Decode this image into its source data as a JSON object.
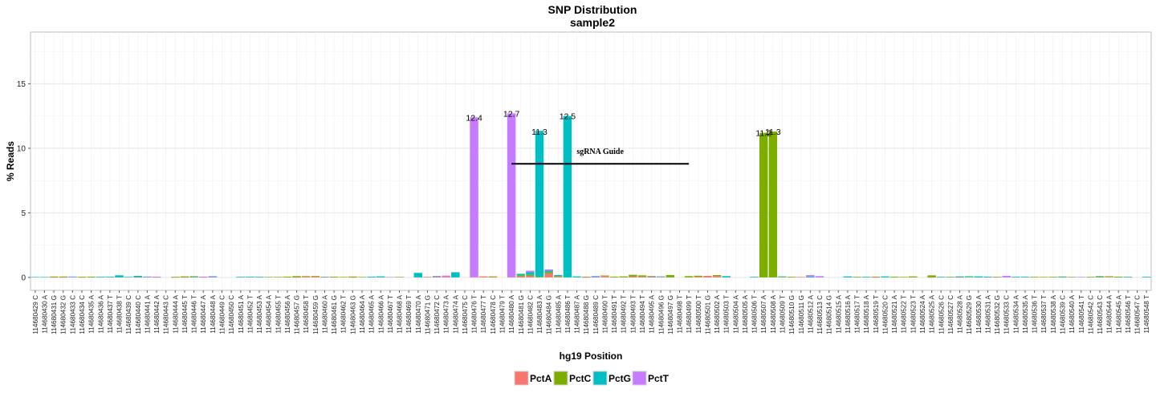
{
  "chart_data": {
    "type": "bar",
    "stacked": true,
    "title": "SNP Distribution",
    "subtitle": "sample2",
    "xlabel": "hg19 Position",
    "ylabel": "% Reads",
    "ylim": [
      -1,
      19
    ],
    "yticks": [
      0,
      5,
      10,
      15
    ],
    "grid": true,
    "legend_position": "bottom",
    "categories": [
      "114680429 C",
      "114680430 A",
      "114680431 G",
      "114680432 G",
      "114680433 C",
      "114680434 C",
      "114680435 A",
      "114680436 A",
      "114680437 T",
      "114680438 T",
      "114680439 C",
      "114680440 C",
      "114680441 A",
      "114680442 A",
      "114680443 C",
      "114680444 A",
      "114680445 T",
      "114680446 T",
      "114680447 A",
      "114680448 A",
      "114680449 C",
      "114680450 C",
      "114680451 A",
      "114680452 T",
      "114680453 A",
      "114680454 A",
      "114680455 T",
      "114680456 A",
      "114680457 G",
      "114680458 T",
      "114680459 G",
      "114680460 A",
      "114680461 G",
      "114680462 T",
      "114680463 G",
      "114680464 A",
      "114680465 A",
      "114680466 A",
      "114680467 T",
      "114680468 A",
      "114680469 T",
      "114680470 A",
      "114680471 G",
      "114680472 C",
      "114680473 A",
      "114680474 A",
      "114680475 C",
      "114680476 T",
      "114680477 T",
      "114680478 C",
      "114680479 T",
      "114680480 A",
      "114680481 G",
      "114680482 C",
      "114680483 A",
      "114680484 G",
      "114680485 A",
      "114680486 T",
      "114680487 A",
      "114680488 G",
      "114680489 C",
      "114680490 T",
      "114680491 T",
      "114680492 T",
      "114680493 T",
      "114680494 T",
      "114680495 A",
      "114680496 G",
      "114680497 G",
      "114680498 T",
      "114680499 T",
      "114680500 T",
      "114680501 G",
      "114680502 A",
      "114680503 T",
      "114680504 A",
      "114680505 A",
      "114680506 T",
      "114680507 A",
      "114680508 A",
      "114680509 T",
      "114680510 G",
      "114680511 G",
      "114680512 A",
      "114680513 C",
      "114680514 G",
      "114680515 A",
      "114680516 A",
      "114680517 T",
      "114680518 A",
      "114680519 T",
      "114680520 C",
      "114680521 A",
      "114680522 T",
      "114680523 T",
      "114680524 A",
      "114680525 A",
      "114680526 C",
      "114680527 C",
      "114680528 A",
      "114680529 G",
      "114680530 A",
      "114680531 A",
      "114680532 G",
      "114680533 C",
      "114680534 A",
      "114680535 A",
      "114680536 T",
      "114680537 T",
      "114680538 A",
      "114680539 C",
      "114680540 A",
      "114680541 T",
      "114680542 C",
      "114680543 C",
      "114680544 A",
      "114680545 A",
      "114680546 T",
      "114680547 C",
      "114680548 T"
    ],
    "series": [
      {
        "name": "PctA",
        "color": "#F8766D",
        "values": [
          0,
          0,
          0.02,
          0.02,
          0,
          0.02,
          0,
          0,
          0,
          0,
          0,
          0.02,
          0,
          0.02,
          0,
          0.02,
          0.02,
          0,
          0.02,
          0,
          0,
          0,
          0,
          0,
          0,
          0,
          0,
          0,
          0.02,
          0.06,
          0.08,
          0.03,
          0,
          0,
          0.02,
          0,
          0,
          0,
          0,
          0,
          0,
          0,
          0.05,
          0.04,
          0.06,
          0,
          0,
          0,
          0.08,
          0.03,
          0,
          0,
          0.08,
          0.12,
          0,
          0.3,
          0.05,
          0,
          0,
          0.02,
          0,
          0.1,
          0,
          0,
          0.06,
          0.06,
          0,
          0.04,
          0,
          0,
          0,
          0.05,
          0.12,
          0.1,
          0,
          0,
          0,
          0,
          0,
          0,
          0,
          0,
          0.04,
          0,
          0,
          0,
          0,
          0,
          0,
          0,
          0.02,
          0,
          0,
          0,
          0,
          0,
          0.02,
          0,
          0,
          0.02,
          0,
          0,
          0,
          0,
          0,
          0,
          0,
          0,
          0,
          0,
          0,
          0,
          0,
          0,
          0,
          0.05,
          0,
          0,
          0,
          0
        ]
      },
      {
        "name": "PctC",
        "color": "#7CAE00",
        "values": [
          0,
          0,
          0.05,
          0.05,
          0,
          0.03,
          0.06,
          0,
          0,
          0,
          0,
          0,
          0,
          0,
          0,
          0.03,
          0.06,
          0.06,
          0,
          0,
          0,
          0,
          0,
          0,
          0,
          0.04,
          0.04,
          0.06,
          0.08,
          0.04,
          0.03,
          0,
          0.06,
          0.04,
          0.05,
          0.04,
          0,
          0,
          0,
          0.04,
          0,
          0,
          0,
          0,
          0,
          0,
          0,
          0,
          0,
          0.05,
          0,
          0,
          0.08,
          0.08,
          0.05,
          0.12,
          0.05,
          0,
          0,
          0.04,
          0,
          0.05,
          0.06,
          0.08,
          0.14,
          0.1,
          0.06,
          0,
          0.18,
          0,
          0.1,
          0.08,
          0,
          0.08,
          0,
          0,
          0,
          0,
          11.2,
          11.3,
          0.04,
          0.05,
          0,
          0,
          0,
          0,
          0,
          0,
          0.05,
          0,
          0.04,
          0,
          0.06,
          0.04,
          0.08,
          0,
          0.14,
          0,
          0.05,
          0,
          0.04,
          0,
          0,
          0.05,
          0,
          0,
          0,
          0.05,
          0.04,
          0.05,
          0.03,
          0.04,
          0,
          0.05,
          0.06,
          0.04,
          0.06,
          0,
          0,
          0
        ]
      },
      {
        "name": "PctG",
        "color": "#00BFC4",
        "values": [
          0.03,
          0.03,
          0,
          0,
          0.04,
          0,
          0,
          0.05,
          0.05,
          0.16,
          0.04,
          0.1,
          0.05,
          0,
          0,
          0,
          0,
          0.03,
          0,
          0.05,
          0,
          0,
          0.05,
          0.05,
          0.05,
          0,
          0,
          0,
          0,
          0,
          0,
          0.02,
          0,
          0,
          0,
          0,
          0.06,
          0.08,
          0,
          0,
          0,
          0.35,
          0,
          0.02,
          0,
          0.4,
          0,
          0,
          0,
          0,
          0,
          0,
          0.12,
          0.2,
          11.3,
          0.1,
          0.08,
          12.5,
          0.08,
          0,
          0.05,
          0,
          0,
          0,
          0,
          0,
          0,
          0.04,
          0,
          0,
          0,
          0,
          0,
          0,
          0.1,
          0,
          0,
          0.05,
          0,
          0,
          0.04,
          0,
          0,
          0.06,
          0,
          0,
          0,
          0.08,
          0,
          0.05,
          0,
          0.08,
          0,
          0,
          0,
          0,
          0,
          0.05,
          0,
          0.06,
          0.05,
          0.08,
          0.06,
          0,
          0,
          0.05,
          0.05,
          0,
          0,
          0,
          0.04,
          0,
          0,
          0,
          0.04,
          0,
          0,
          0.05,
          0,
          0.05
        ]
      },
      {
        "name": "PctT",
        "color": "#C77CFF",
        "values": [
          0,
          0,
          0,
          0,
          0.03,
          0,
          0,
          0,
          0,
          0,
          0,
          0,
          0.02,
          0.04,
          0,
          0,
          0,
          0,
          0.04,
          0.05,
          0,
          0,
          0,
          0,
          0,
          0,
          0,
          0,
          0,
          0,
          0,
          0,
          0,
          0,
          0,
          0,
          0,
          0,
          0.03,
          0,
          0,
          0,
          0,
          0.06,
          0.08,
          0,
          0,
          12.4,
          0,
          0,
          0,
          12.7,
          0,
          0.12,
          0,
          0.1,
          0,
          0,
          0,
          0,
          0.06,
          0,
          0,
          0,
          0,
          0,
          0.06,
          0,
          0,
          0,
          0,
          0,
          0,
          0,
          0,
          0,
          0,
          0,
          0,
          0,
          0,
          0,
          0,
          0.12,
          0.1,
          0,
          0,
          0,
          0,
          0,
          0,
          0,
          0,
          0,
          0,
          0,
          0,
          0,
          0,
          0,
          0,
          0,
          0,
          0,
          0.12,
          0,
          0,
          0,
          0,
          0,
          0,
          0,
          0.04,
          0,
          0,
          0,
          0,
          0,
          0,
          0
        ]
      }
    ],
    "data_labels": [
      {
        "index": 47,
        "text": "12.4",
        "y": 12.4
      },
      {
        "index": 51,
        "text": "12.7",
        "y": 12.7
      },
      {
        "index": 54,
        "text": "11.3",
        "y": 11.3
      },
      {
        "index": 57,
        "text": "12.5",
        "y": 12.5
      },
      {
        "index": 78,
        "text": "11.2",
        "y": 11.2
      },
      {
        "index": 79,
        "text": "11.3",
        "y": 11.3
      }
    ],
    "guide": {
      "label": "sgRNA Guide",
      "y": 8.8,
      "x_start_index": 51,
      "x_end_index": 70
    }
  }
}
